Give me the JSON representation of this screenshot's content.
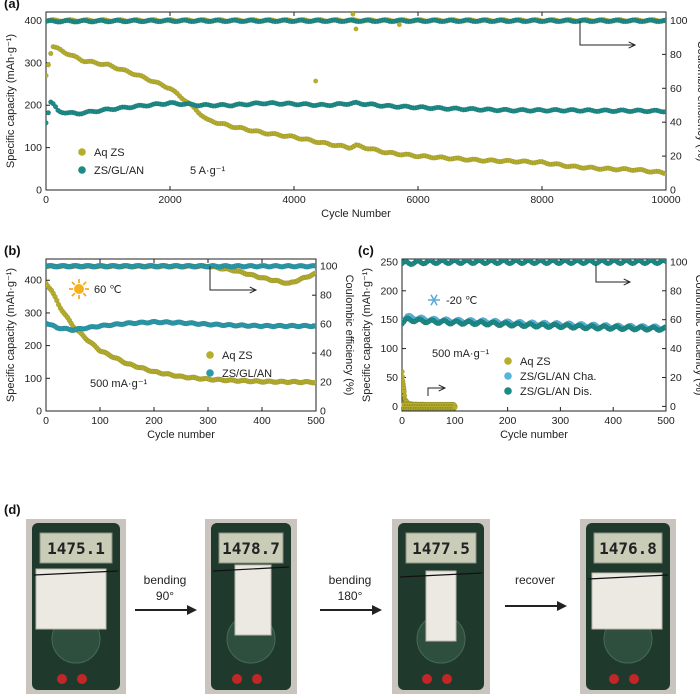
{
  "chart_data": [
    {
      "panel": "(a)",
      "type": "scatter",
      "xlabel": "Cycle Number",
      "ylabel": "Specific capacity (mAh·g⁻¹)",
      "y2label": "Coulombic efficiency (%)",
      "xlim": [
        0,
        10000
      ],
      "ylim": [
        0,
        420
      ],
      "y2lim": [
        0,
        105
      ],
      "xticks": [
        0,
        2000,
        4000,
        6000,
        8000,
        10000
      ],
      "yticks": [
        0,
        100,
        200,
        300,
        400
      ],
      "y2ticks": [
        0,
        20,
        40,
        60,
        80,
        100
      ],
      "annotation": "5 A·g⁻¹",
      "series": [
        {
          "name": "Aq ZS",
          "color": "#b5ad2c",
          "axis": "left",
          "x": [
            0,
            100,
            300,
            600,
            1000,
            1500,
            2000,
            2300,
            2600,
            3000,
            3500,
            4000,
            4500,
            4900,
            5000,
            5500,
            6000,
            6500,
            7000,
            7500,
            8000,
            8500,
            9000,
            9500,
            10000
          ],
          "y": [
            270,
            340,
            325,
            305,
            295,
            270,
            240,
            205,
            165,
            150,
            135,
            125,
            110,
            100,
            105,
            88,
            80,
            75,
            70,
            68,
            65,
            55,
            50,
            48,
            40
          ]
        },
        {
          "name": "ZS/GL/AN",
          "color": "#1c8a86",
          "axis": "left",
          "x": [
            0,
            80,
            200,
            500,
            1000,
            1500,
            2000,
            2500,
            3000,
            3500,
            4000,
            4500,
            5000,
            5500,
            6000,
            6500,
            7000,
            7500,
            8000,
            8500,
            9000,
            9500,
            10000
          ],
          "y": [
            160,
            210,
            185,
            180,
            190,
            198,
            205,
            200,
            200,
            205,
            203,
            200,
            205,
            198,
            195,
            192,
            190,
            188,
            188,
            188,
            187,
            187,
            186
          ]
        },
        {
          "name": "Aq ZS CE",
          "color": "#b5ad2c",
          "axis": "right",
          "x": [
            0,
            2000,
            4000,
            5000,
            6000,
            8000,
            10000
          ],
          "y": [
            100,
            100,
            100,
            100,
            100,
            100,
            100
          ]
        },
        {
          "name": "ZS/GL/AN CE",
          "color": "#1c8a86",
          "axis": "right",
          "x": [
            0,
            2000,
            4000,
            6000,
            8000,
            10000
          ],
          "y": [
            99.5,
            99.8,
            99.8,
            99.8,
            99.8,
            99.8
          ]
        }
      ],
      "outliers": [
        {
          "x": 4350,
          "y": 257,
          "axis": "left"
        },
        {
          "x": 4950,
          "y": 415,
          "axis": "left"
        },
        {
          "x": 5000,
          "y": 380,
          "axis": "left"
        },
        {
          "x": 5700,
          "y": 390,
          "axis": "left"
        }
      ],
      "legend": [
        {
          "label": "Aq ZS",
          "color": "#b5ad2c"
        },
        {
          "label": "ZS/GL/AN",
          "color": "#1c8a86"
        }
      ]
    },
    {
      "panel": "(b)",
      "type": "scatter",
      "xlabel": "Cycle number",
      "ylabel": "Specific capacity (mAh·g⁻¹)",
      "y2label": "Coulombic efficiency (%)",
      "xlim": [
        0,
        500
      ],
      "ylim": [
        0,
        465
      ],
      "y2lim": [
        0,
        105
      ],
      "xticks": [
        0,
        100,
        200,
        300,
        400,
        500
      ],
      "yticks": [
        0,
        100,
        200,
        300,
        400
      ],
      "y2ticks": [
        0,
        20,
        40,
        60,
        80,
        100
      ],
      "temperature": "60 ℃",
      "annotation": "500 mA·g⁻¹",
      "series": [
        {
          "name": "Aq ZS",
          "color": "#b5ad2c",
          "axis": "left",
          "x": [
            0,
            10,
            25,
            50,
            75,
            100,
            150,
            200,
            250,
            300,
            350,
            400,
            450,
            500
          ],
          "y": [
            390,
            370,
            320,
            260,
            220,
            185,
            145,
            120,
            105,
            97,
            93,
            90,
            89,
            88
          ]
        },
        {
          "name": "ZS/GL/AN",
          "color": "#2a9aaa",
          "axis": "left",
          "x": [
            0,
            20,
            50,
            100,
            150,
            200,
            250,
            300,
            350,
            400,
            450,
            500
          ],
          "y": [
            270,
            255,
            248,
            260,
            268,
            272,
            270,
            265,
            262,
            260,
            260,
            260
          ]
        },
        {
          "name": "Aq ZS CE",
          "color": "#b5ad2c",
          "axis": "right",
          "x": [
            0,
            50,
            100,
            200,
            300,
            350,
            400,
            450,
            500
          ],
          "y": [
            100,
            100,
            100,
            100,
            100,
            97,
            92,
            88,
            95
          ]
        },
        {
          "name": "ZS/GL/AN CE",
          "color": "#2a9aaa",
          "axis": "right",
          "x": [
            0,
            100,
            200,
            300,
            400,
            500
          ],
          "y": [
            100,
            100,
            100,
            100,
            100,
            100
          ]
        }
      ],
      "legend": [
        {
          "label": "Aq ZS",
          "color": "#b5ad2c"
        },
        {
          "label": "ZS/GL/AN",
          "color": "#2a9aaa"
        }
      ]
    },
    {
      "panel": "(c)",
      "type": "scatter",
      "xlabel": "Cycle number",
      "ylabel": "Specific capacity (mAh·g⁻¹)",
      "y2label": "Coulombic efficiency (%)",
      "xlim": [
        0,
        500
      ],
      "ylim": [
        -8,
        255
      ],
      "y2lim": [
        -3.2,
        102
      ],
      "xticks": [
        0,
        100,
        200,
        300,
        400,
        500
      ],
      "yticks": [
        0,
        50,
        100,
        150,
        200,
        250
      ],
      "y2ticks": [
        0,
        20,
        40,
        60,
        80,
        100
      ],
      "temperature": "-20 ℃",
      "annotation": "500 mA·g⁻¹",
      "series": [
        {
          "name": "Aq ZS",
          "color": "#b5ad2c",
          "axis": "left",
          "x": [
            0,
            3,
            6,
            10,
            20,
            50,
            100
          ],
          "y": [
            60,
            30,
            10,
            3,
            1,
            0.5,
            0.5
          ]
        },
        {
          "name": "ZS/GL/AN Cha.",
          "color": "#55b6dc",
          "axis": "left",
          "x": [
            0,
            10,
            50,
            100,
            150,
            200,
            250,
            300,
            350,
            400,
            450,
            500
          ],
          "y": [
            150,
            155,
            150,
            148,
            147,
            145,
            143,
            142,
            140,
            138,
            137,
            136
          ]
        },
        {
          "name": "ZS/GL/AN Dis.",
          "color": "#1c8a86",
          "axis": "left",
          "x": [
            0,
            10,
            50,
            100,
            150,
            200,
            250,
            300,
            350,
            400,
            450,
            500
          ],
          "y": [
            145,
            150,
            147,
            145,
            144,
            142,
            140,
            139,
            137,
            136,
            135,
            134
          ]
        },
        {
          "name": "ZS/GL/AN CE",
          "color": "#1c8a86",
          "axis": "right",
          "x": [
            0,
            50,
            100,
            200,
            300,
            400,
            500
          ],
          "y": [
            99,
            100,
            100,
            100,
            100,
            100,
            100
          ]
        },
        {
          "name": "Aq ZS CE",
          "color": "#b5ad2c",
          "axis": "right",
          "x": [
            0,
            50,
            100
          ],
          "y": [
            0,
            0,
            0
          ]
        }
      ],
      "legend": [
        {
          "label": "Aq ZS",
          "color": "#b5ad2c"
        },
        {
          "label": "ZS/GL/AN Cha.",
          "color": "#55b6dc"
        },
        {
          "label": "ZS/GL/AN Dis.",
          "color": "#1c8a86"
        }
      ]
    }
  ],
  "panel_d": {
    "label": "(d)",
    "readings": [
      "1475.1",
      "1478.7",
      "1477.5",
      "1476.8"
    ],
    "steps": [
      {
        "line1": "bending",
        "line2": "90°"
      },
      {
        "line1": "bending",
        "line2": "180°"
      },
      {
        "line1": "recover",
        "line2": ""
      }
    ]
  }
}
